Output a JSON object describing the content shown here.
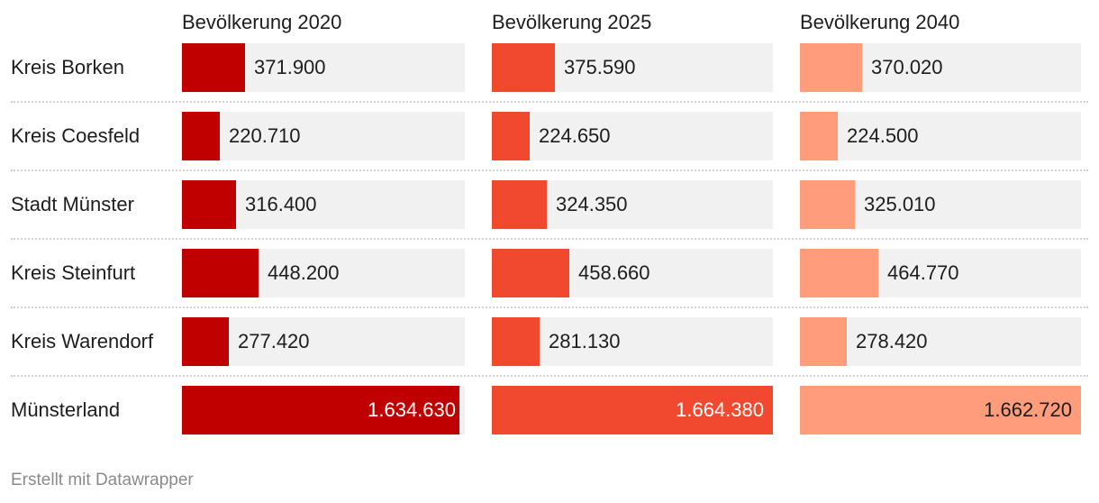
{
  "chart_data": {
    "type": "bar",
    "categories": [
      "Kreis Borken",
      "Kreis Coesfeld",
      "Stadt Münster",
      "Kreis Steinfurt",
      "Kreis Warendorf",
      "Münsterland"
    ],
    "series": [
      {
        "name": "Bevölkerung 2020",
        "color": "#c00000",
        "values": [
          371900,
          220710,
          316400,
          448200,
          277420,
          1634630
        ],
        "labels": [
          "371.900",
          "220.710",
          "316.400",
          "448.200",
          "277.420",
          "1.634.630"
        ]
      },
      {
        "name": "Bevölkerung 2025",
        "color": "#f0492f",
        "values": [
          375590,
          224650,
          324350,
          458660,
          281130,
          1664380
        ],
        "labels": [
          "375.590",
          "224.650",
          "324.350",
          "458.660",
          "281.130",
          "1.664.380"
        ]
      },
      {
        "name": "Bevölkerung 2040",
        "color": "#ff9c7b",
        "values": [
          370020,
          224500,
          325010,
          464770,
          278420,
          1662720
        ],
        "labels": [
          "370.020",
          "224.500",
          "325.010",
          "464.770",
          "278.420",
          "1.662.720"
        ]
      }
    ],
    "xlim": [
      0,
      1664380
    ]
  },
  "footer": "Erstellt mit Datawrapper"
}
